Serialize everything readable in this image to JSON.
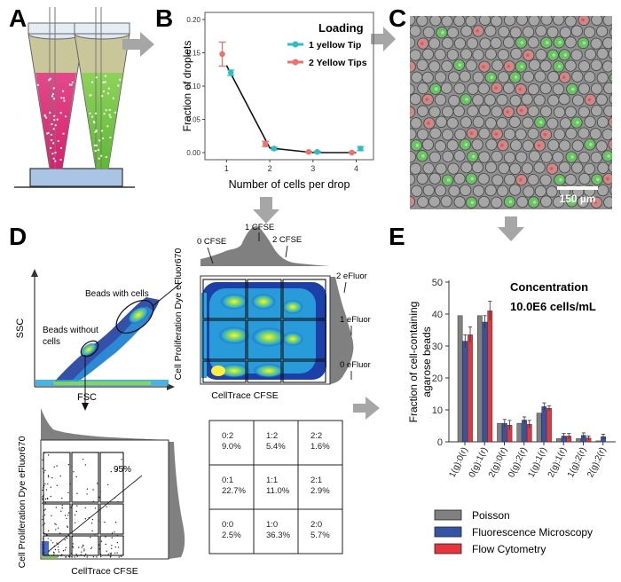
{
  "panels": {
    "a": "A",
    "b": "B",
    "c": "C",
    "d": "D",
    "e": "E"
  },
  "colors": {
    "pink": "#e0307a",
    "green": "#7fc84a",
    "teal": "#29bfc3",
    "salmon": "#ef6f6a",
    "gray": "#808080",
    "blue": "#3454a8",
    "red": "#e8343a",
    "arrow": "#a6a6a6"
  },
  "panel_b": {
    "ylabel": "Fraction of droplets",
    "xlabel": "Number of cells per drop",
    "legend_title": "Loading",
    "yticks": [
      "0.00",
      "0.05",
      "0.10",
      "0.15",
      "0.20"
    ],
    "xticks": [
      "1",
      "2",
      "3",
      "4"
    ]
  },
  "chart_data": [
    {
      "type": "scatter",
      "title": "Loading",
      "xlabel": "Number of cells per drop",
      "ylabel": "Fraction of droplets",
      "ylim": [
        0,
        0.2
      ],
      "xlim": [
        0.5,
        4.4
      ],
      "series": [
        {
          "name": "1 yellow Tip",
          "x": [
            1.1,
            2.1,
            3.1,
            4.1
          ],
          "values": [
            0.12,
            0.006,
            0.001,
            0.006
          ],
          "err": [
            0.004,
            0.002,
            0.001,
            0.003
          ]
        },
        {
          "name": "2 Yellow Tips",
          "x": [
            0.9,
            1.9,
            2.9,
            3.9
          ],
          "values": [
            0.148,
            0.013,
            0.001,
            0.0
          ],
          "err": [
            0.018,
            0.004,
            0.001,
            0.001
          ]
        }
      ],
      "fit_line": {
        "x": [
          1,
          2,
          3,
          4
        ],
        "values": [
          0.131,
          0.007,
          0.0,
          0.0
        ]
      }
    },
    {
      "type": "bar",
      "title": "",
      "xlabel": "",
      "ylabel": "Fraction of cell-containing agarose beads",
      "ylim": [
        0,
        50
      ],
      "yticks": [
        "0",
        "10",
        "20",
        "30",
        "40",
        "50"
      ],
      "categories": [
        "1(g):0(r)",
        "0(g):1(r)",
        "2(g):0(r)",
        "0(g):2(r)",
        "1(g):1(r)",
        "2(g):1(r)",
        "1(g):2(r)",
        "2(g):2(r)"
      ],
      "series": [
        {
          "name": "Poisson",
          "values": [
            39.5,
            39.5,
            5.8,
            5.8,
            9.0,
            1.0,
            1.0,
            0.3
          ],
          "err": [
            0,
            0,
            0,
            0,
            0,
            0,
            0,
            0
          ]
        },
        {
          "name": "Fluorescence Microscopy",
          "values": [
            31.5,
            37.5,
            5.8,
            6.8,
            11.0,
            1.8,
            2.0,
            1.6
          ],
          "err": [
            2.0,
            2.0,
            1.2,
            1.0,
            1.2,
            0.8,
            0.8,
            0.8
          ]
        },
        {
          "name": "Flow Cytometry",
          "values": [
            33.5,
            41.0,
            5.2,
            5.5,
            10.5,
            1.8,
            1.2,
            0
          ],
          "err": [
            2.5,
            3.0,
            1.5,
            1.2,
            0.8,
            0.8,
            0.6,
            0
          ]
        }
      ]
    }
  ],
  "panel_c": {
    "scale_bar": "150 µm"
  },
  "panel_d": {
    "scatter_xlabel": "FSC",
    "scatter_ylabel": "SSC",
    "beads_with_cells": "Beads with cells",
    "beads_without_cells_line1": "Beads without",
    "beads_without_cells_line2": "cells",
    "top_xlabel": "CellTrace CFSE",
    "top_ylabel": "Cell Proliferation Dye eFluor670",
    "cfse0": "0 CFSE",
    "cfse1": "1 CFSE",
    "cfse2": "2 CFSE",
    "ef2": "2 eFluor",
    "ef1": "1 eFluor",
    "ef0": "0 eFluor",
    "bottom_xlabel": "CellTrace CFSE",
    "bottom_ylabel": "Cell Proliferation Dye eFluor670",
    "percent": "95%",
    "grid": [
      [
        "0:2",
        "9.0%",
        "1:2",
        "5.4%",
        "2:2",
        "1.6%"
      ],
      [
        "0:1",
        "22.7%",
        "1:1",
        "11.0%",
        "2:1",
        "2.9%"
      ],
      [
        "0:0",
        "2.5%",
        "1:0",
        "36.3%",
        "2:0",
        "5.7%"
      ]
    ]
  },
  "panel_e": {
    "concentration_title": "Concentration",
    "concentration_value": "10.0E6 cells/mL",
    "ylabel_line1": "Fraction of cell-containing",
    "ylabel_line2": "agarose beads"
  }
}
